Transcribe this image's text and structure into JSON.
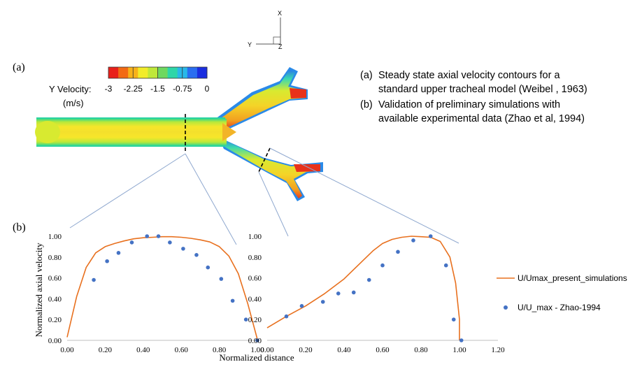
{
  "panel_labels": {
    "a": "(a)",
    "b": "(b)"
  },
  "axes_triad": {
    "x": "X",
    "y": "Y",
    "z": "Z"
  },
  "colorbar": {
    "title": "Y Velocity:",
    "unit": "(m/s)",
    "ticks": [
      "-3",
      "-2.25",
      "-1.5",
      "-0.75",
      "0"
    ],
    "colors": [
      "#e8201a",
      "#f26a14",
      "#f7b21a",
      "#f2ec2a",
      "#bfe83a",
      "#6fd860",
      "#2fd6a8",
      "#2ab8e8",
      "#2a6ef0",
      "#1a2ee0"
    ]
  },
  "caption": {
    "items": [
      {
        "tag": "(a)",
        "text": "Steady state axial velocity contours for a standard upper tracheal model (Weibel , 1963)"
      },
      {
        "tag": "(b)",
        "text": "Validation of preliminary simulations with available experimental data (Zhao et al, 1994)"
      }
    ]
  },
  "chart_data": [
    {
      "type": "line",
      "xlabel": "Normalized distance",
      "ylabel": "Normalized axial velocity",
      "xlim": [
        0,
        1
      ],
      "ylim": [
        0,
        1
      ],
      "xticks": [
        "0.00",
        "0.20",
        "0.40",
        "0.60",
        "0.80",
        "1.00"
      ],
      "yticks": [
        "0.00",
        "0.20",
        "0.40",
        "0.60",
        "0.80",
        "1.00"
      ],
      "series": [
        {
          "name": "U/Umax_present_simulations",
          "kind": "line",
          "color": "#e8701e",
          "x": [
            0.0,
            0.05,
            0.1,
            0.15,
            0.2,
            0.25,
            0.3,
            0.35,
            0.4,
            0.45,
            0.5,
            0.55,
            0.6,
            0.65,
            0.7,
            0.75,
            0.8,
            0.85,
            0.9,
            0.95,
            1.0
          ],
          "y": [
            0.03,
            0.42,
            0.7,
            0.84,
            0.9,
            0.93,
            0.955,
            0.975,
            0.985,
            0.99,
            0.995,
            0.995,
            0.99,
            0.98,
            0.965,
            0.945,
            0.9,
            0.81,
            0.64,
            0.35,
            0.01
          ]
        },
        {
          "name": "U/U_max - Zhao-1994",
          "kind": "scatter",
          "color": "#4472c4",
          "x": [
            0.14,
            0.21,
            0.27,
            0.34,
            0.42,
            0.48,
            0.54,
            0.61,
            0.68,
            0.74,
            0.81,
            0.87,
            0.94,
            1.0
          ],
          "y": [
            0.58,
            0.76,
            0.84,
            0.94,
            1.0,
            1.0,
            0.94,
            0.88,
            0.82,
            0.7,
            0.59,
            0.38,
            0.2,
            0.0
          ]
        }
      ]
    },
    {
      "type": "line",
      "xlabel": "",
      "ylabel": "",
      "xlim": [
        0,
        1.2
      ],
      "ylim": [
        0,
        1
      ],
      "xticks": [
        "0.00",
        "0.20",
        "0.40",
        "0.60",
        "0.80",
        "1.00",
        "1.20"
      ],
      "yticks": [
        "0.00",
        "0.20",
        "0.40",
        "0.60",
        "0.80",
        "1.00"
      ],
      "legend": "right",
      "series": [
        {
          "name": "U/Umax_present_simulations",
          "kind": "line",
          "color": "#e8701e",
          "x": [
            0.0,
            0.1,
            0.2,
            0.3,
            0.4,
            0.5,
            0.55,
            0.6,
            0.65,
            0.7,
            0.75,
            0.8,
            0.85,
            0.9,
            0.95,
            0.98,
            1.0,
            1.0
          ],
          "y": [
            0.12,
            0.23,
            0.33,
            0.45,
            0.59,
            0.77,
            0.86,
            0.93,
            0.97,
            0.99,
            1.0,
            0.995,
            0.99,
            0.95,
            0.8,
            0.55,
            0.2,
            0.0
          ]
        },
        {
          "name": "U/U_max - Zhao-1994",
          "kind": "scatter",
          "color": "#4472c4",
          "x": [
            0.1,
            0.18,
            0.29,
            0.37,
            0.45,
            0.53,
            0.6,
            0.68,
            0.76,
            0.85,
            0.93,
            0.97,
            1.01
          ],
          "y": [
            0.23,
            0.33,
            0.37,
            0.45,
            0.46,
            0.58,
            0.72,
            0.85,
            0.96,
            1.0,
            0.72,
            0.2,
            0.0
          ]
        }
      ]
    }
  ]
}
